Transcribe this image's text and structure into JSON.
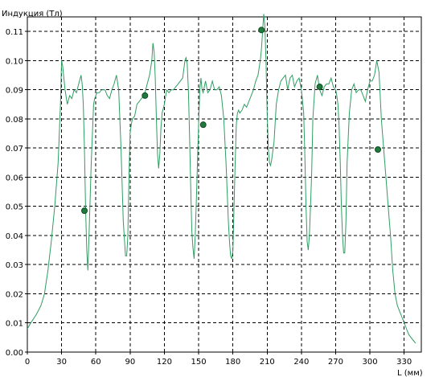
{
  "chart_data": {
    "type": "line",
    "ylabel": "Индукция (Тл)",
    "xlabel": "L (мм)",
    "xlim": [
      0,
      345
    ],
    "ylim": [
      0,
      0.115
    ],
    "xticks": [
      0,
      30,
      60,
      90,
      120,
      150,
      180,
      210,
      240,
      270,
      300,
      330
    ],
    "xtick_labels": [
      "0",
      "30",
      "60",
      "90",
      "120",
      "150",
      "180",
      "210",
      "240",
      "270",
      "300",
      "330"
    ],
    "yticks": [
      0,
      0.01,
      0.02,
      0.03,
      0.04,
      0.05,
      0.06,
      0.07,
      0.08,
      0.09,
      0.1,
      0.11
    ],
    "ytick_labels": [
      "0.00",
      "0.01",
      "0.02",
      "0.03",
      "0.04",
      "0.05",
      "0.06",
      "0.07",
      "0.08",
      "0.09",
      "0.10",
      "0.11"
    ],
    "grid": true,
    "line_color": "#2e9e62",
    "marker_color": "#1f7a3c",
    "series": [
      {
        "x": [
          0,
          3,
          8,
          12,
          15,
          18,
          21,
          24,
          27,
          29,
          30,
          31,
          33,
          35,
          37,
          39,
          41,
          43,
          45,
          47,
          48,
          49,
          50,
          51,
          52,
          53,
          54,
          56,
          58,
          59,
          60,
          61,
          62,
          63,
          65,
          68,
          70,
          72,
          74,
          76,
          78,
          80,
          82,
          84,
          86,
          87,
          88,
          89,
          90,
          91,
          92,
          94,
          96,
          98,
          100,
          102,
          103,
          105,
          107,
          109,
          110,
          111,
          112,
          113,
          114,
          115,
          116,
          117,
          118,
          120,
          122,
          124,
          126,
          128,
          130,
          132,
          134,
          136,
          138,
          139,
          140,
          141,
          142,
          143,
          144,
          145,
          146,
          147,
          148,
          149,
          150,
          151,
          152,
          153,
          154,
          155,
          156,
          158,
          160,
          162,
          164,
          166,
          168,
          170,
          172,
          174,
          176,
          177,
          178,
          179,
          180,
          181,
          182,
          183,
          184,
          185,
          186,
          188,
          190,
          192,
          194,
          196,
          198,
          200,
          202,
          204,
          205,
          206,
          207,
          208,
          209,
          210,
          211,
          212,
          213,
          214,
          216,
          218,
          220,
          222,
          224,
          226,
          228,
          230,
          232,
          234,
          236,
          238,
          240,
          242,
          243,
          244,
          245,
          246,
          247,
          248,
          249,
          250,
          252,
          254,
          256,
          258,
          260,
          262,
          264,
          266,
          268,
          270,
          271,
          272,
          273,
          274,
          275,
          276,
          277,
          278,
          279,
          280,
          282,
          284,
          286,
          288,
          290,
          292,
          294,
          296,
          298,
          300,
          302,
          304,
          306,
          308,
          310,
          312,
          314,
          316,
          318,
          320,
          322,
          324,
          326,
          328,
          330,
          332,
          334,
          336,
          338,
          340
        ],
        "y": [
          0.008,
          0.01,
          0.013,
          0.016,
          0.02,
          0.028,
          0.038,
          0.05,
          0.065,
          0.085,
          0.1,
          0.098,
          0.09,
          0.085,
          0.088,
          0.087,
          0.09,
          0.089,
          0.092,
          0.095,
          0.092,
          0.085,
          0.07,
          0.05,
          0.035,
          0.028,
          0.04,
          0.065,
          0.085,
          0.087,
          0.088,
          0.089,
          0.089,
          0.089,
          0.09,
          0.09,
          0.088,
          0.087,
          0.09,
          0.092,
          0.095,
          0.09,
          0.07,
          0.045,
          0.033,
          0.033,
          0.04,
          0.06,
          0.075,
          0.078,
          0.08,
          0.081,
          0.085,
          0.086,
          0.087,
          0.088,
          0.089,
          0.092,
          0.095,
          0.1,
          0.106,
          0.103,
          0.094,
          0.08,
          0.068,
          0.063,
          0.068,
          0.077,
          0.082,
          0.085,
          0.09,
          0.089,
          0.09,
          0.09,
          0.091,
          0.092,
          0.093,
          0.094,
          0.1,
          0.101,
          0.099,
          0.09,
          0.075,
          0.058,
          0.042,
          0.036,
          0.032,
          0.04,
          0.052,
          0.065,
          0.078,
          0.09,
          0.094,
          0.09,
          0.089,
          0.091,
          0.093,
          0.089,
          0.09,
          0.093,
          0.09,
          0.09,
          0.091,
          0.088,
          0.08,
          0.065,
          0.045,
          0.038,
          0.033,
          0.032,
          0.035,
          0.05,
          0.065,
          0.078,
          0.082,
          0.083,
          0.082,
          0.083,
          0.085,
          0.084,
          0.086,
          0.088,
          0.09,
          0.093,
          0.095,
          0.1,
          0.104,
          0.11,
          0.116,
          0.112,
          0.1,
          0.082,
          0.07,
          0.065,
          0.064,
          0.066,
          0.072,
          0.085,
          0.09,
          0.093,
          0.094,
          0.095,
          0.09,
          0.094,
          0.095,
          0.091,
          0.093,
          0.094,
          0.09,
          0.082,
          0.068,
          0.05,
          0.038,
          0.035,
          0.04,
          0.05,
          0.062,
          0.08,
          0.092,
          0.095,
          0.09,
          0.088,
          0.091,
          0.092,
          0.092,
          0.094,
          0.091,
          0.09,
          0.088,
          0.085,
          0.078,
          0.065,
          0.05,
          0.04,
          0.034,
          0.034,
          0.045,
          0.065,
          0.082,
          0.09,
          0.092,
          0.089,
          0.09,
          0.09,
          0.088,
          0.086,
          0.09,
          0.093,
          0.093,
          0.095,
          0.1,
          0.096,
          0.08,
          0.07,
          0.06,
          0.05,
          0.04,
          0.028,
          0.02,
          0.016,
          0.014,
          0.012,
          0.01,
          0.008,
          0.006,
          0.005,
          0.004,
          0.003
        ]
      }
    ],
    "markers": [
      {
        "x": 50,
        "y": 0.0485
      },
      {
        "x": 103,
        "y": 0.088
      },
      {
        "x": 154,
        "y": 0.078
      },
      {
        "x": 205,
        "y": 0.1105
      },
      {
        "x": 256,
        "y": 0.091
      },
      {
        "x": 307,
        "y": 0.0695
      }
    ]
  }
}
